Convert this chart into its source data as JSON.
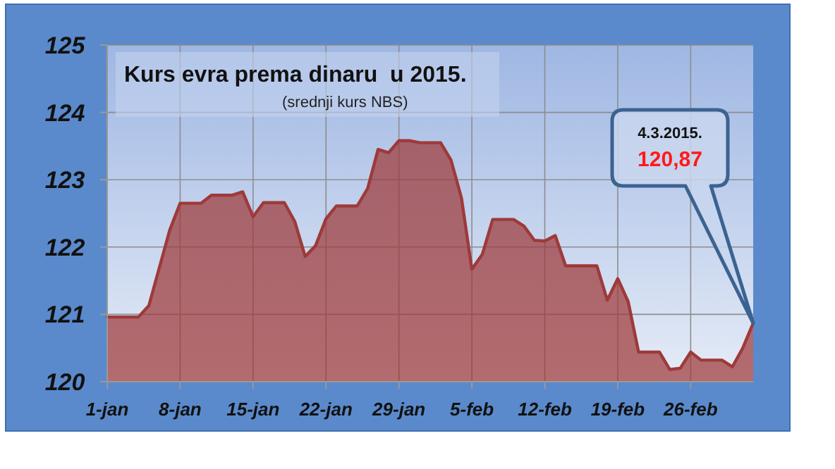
{
  "chart_data": {
    "type": "area",
    "title": "Kurs evra prema dinaru  u 2015.",
    "subtitle": "(srednji kurs NBS)",
    "x": [
      "2015-01-01",
      "2015-01-04",
      "2015-01-05",
      "2015-01-07",
      "2015-01-08",
      "2015-01-10",
      "2015-01-11",
      "2015-01-13",
      "2015-01-14",
      "2015-01-15",
      "2015-01-16",
      "2015-01-18",
      "2015-01-19",
      "2015-01-20",
      "2015-01-21",
      "2015-01-22",
      "2015-01-23",
      "2015-01-25",
      "2015-01-26",
      "2015-01-27",
      "2015-01-28",
      "2015-01-29",
      "2015-01-30",
      "2015-01-31",
      "2015-02-02",
      "2015-02-03",
      "2015-02-04",
      "2015-02-05",
      "2015-02-06",
      "2015-02-07",
      "2015-02-09",
      "2015-02-10",
      "2015-02-11",
      "2015-02-12",
      "2015-02-13",
      "2015-02-14",
      "2015-02-17",
      "2015-02-18",
      "2015-02-19",
      "2015-02-20",
      "2015-02-21",
      "2015-02-23",
      "2015-02-24",
      "2015-02-25",
      "2015-02-26",
      "2015-02-27",
      "2015-03-01",
      "2015-03-02",
      "2015-03-03",
      "2015-03-04"
    ],
    "series": [
      {
        "color": "#9e3a3a",
        "values": [
          120.96,
          120.96,
          121.13,
          122.25,
          122.65,
          122.65,
          122.77,
          122.77,
          122.82,
          122.45,
          122.66,
          122.66,
          122.38,
          121.86,
          122.02,
          122.42,
          122.61,
          122.61,
          122.87,
          123.45,
          123.4,
          123.58,
          123.58,
          123.55,
          123.55,
          123.29,
          122.73,
          121.67,
          121.89,
          122.41,
          122.41,
          122.31,
          122.1,
          122.09,
          122.17,
          121.72,
          121.72,
          121.21,
          121.53,
          121.19,
          120.44,
          120.44,
          120.18,
          120.2,
          120.44,
          120.32,
          120.32,
          120.22,
          120.5,
          120.87
        ]
      }
    ],
    "xlim": [
      "2015-01-01",
      "2015-03-04"
    ],
    "xticks": [
      {
        "value": "2015-01-01",
        "label": "1-jan"
      },
      {
        "value": "2015-01-08",
        "label": "8-jan"
      },
      {
        "value": "2015-01-15",
        "label": "15-jan"
      },
      {
        "value": "2015-01-22",
        "label": "22-jan"
      },
      {
        "value": "2015-01-29",
        "label": "29-jan"
      },
      {
        "value": "2015-02-05",
        "label": "5-feb"
      },
      {
        "value": "2015-02-12",
        "label": "12-feb"
      },
      {
        "value": "2015-02-19",
        "label": "19-feb"
      },
      {
        "value": "2015-02-26",
        "label": "26-feb"
      }
    ],
    "ylim": [
      120,
      125
    ],
    "yticks": [
      120,
      121,
      122,
      123,
      124,
      125
    ],
    "grid": true,
    "annotations": [
      "4.3.2015.",
      "120,87"
    ]
  }
}
